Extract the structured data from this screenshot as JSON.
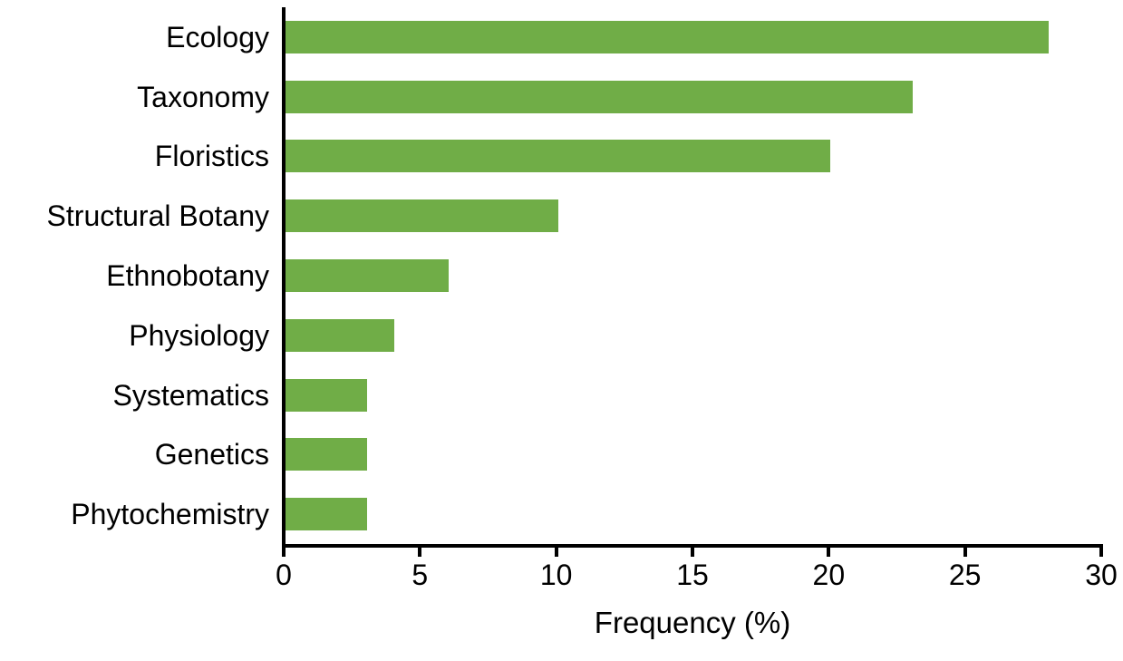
{
  "chart_data": {
    "type": "bar",
    "orientation": "horizontal",
    "title": "",
    "xlabel": "Frequency (%)",
    "ylabel": "",
    "categories": [
      "Ecology",
      "Taxonomy",
      "Floristics",
      "Structural Botany",
      "Ethnobotany",
      "Physiology",
      "Systematics",
      "Genetics",
      "Phytochemistry"
    ],
    "values": [
      28,
      23,
      20,
      10,
      6,
      4,
      3,
      3,
      3
    ],
    "xlim": [
      0,
      30
    ],
    "xticks": [
      0,
      5,
      10,
      15,
      20,
      25,
      30
    ],
    "grid": false,
    "legend": false,
    "bar_color": "#70AD47",
    "axis_color": "#000000",
    "text_color": "#000000",
    "background_color": "#FFFFFF"
  }
}
